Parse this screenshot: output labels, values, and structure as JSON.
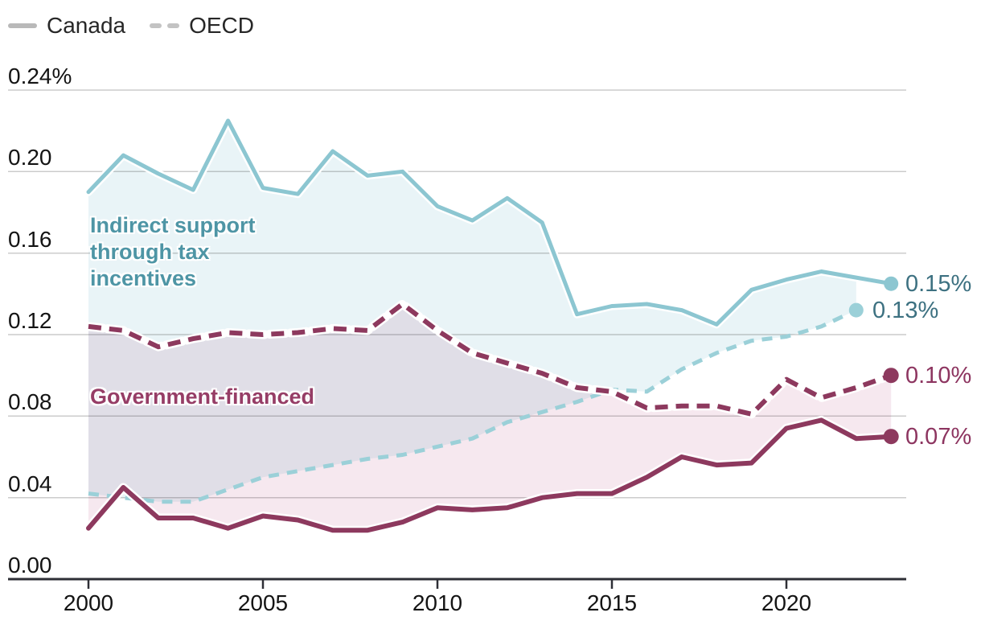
{
  "legend": {
    "items": [
      {
        "label": "Canada",
        "style": "solid",
        "swatch_color": "#b9b9b9"
      },
      {
        "label": "OECD",
        "style": "dashed",
        "swatch_color": "#c3c3c3"
      }
    ]
  },
  "annotations": {
    "indirect": {
      "text": "Indirect support\nthrough tax\nincentives",
      "color": "#4e95a5"
    },
    "direct": {
      "text": "Government-financed",
      "color": "#963d66"
    }
  },
  "end_labels": [
    {
      "text": "0.15%",
      "color": "#3d7181",
      "series": "canada_tax"
    },
    {
      "text": "0.13%",
      "color": "#3d7181",
      "series": "oecd_tax"
    },
    {
      "text": "0.10%",
      "color": "#8d3560",
      "series": "oecd_gov"
    },
    {
      "text": "0.07%",
      "color": "#8d3560",
      "series": "canada_gov"
    }
  ],
  "chart_data": {
    "type": "line",
    "title": "",
    "xlabel": "",
    "ylabel": "",
    "ylim": [
      0,
      0.24
    ],
    "grid": "horizontal",
    "gridline_color": "#cccccc",
    "axis_color": "#2e2f36",
    "x": [
      2000,
      2001,
      2002,
      2003,
      2004,
      2005,
      2006,
      2007,
      2008,
      2009,
      2010,
      2011,
      2012,
      2013,
      2014,
      2015,
      2016,
      2017,
      2018,
      2019,
      2020,
      2021,
      2022,
      2023
    ],
    "x_ticks": [
      {
        "v": 2000,
        "label": "2000"
      },
      {
        "v": 2005,
        "label": "2005"
      },
      {
        "v": 2010,
        "label": "2010"
      },
      {
        "v": 2015,
        "label": "2015"
      },
      {
        "v": 2020,
        "label": "2020"
      }
    ],
    "y_ticks": [
      {
        "v": 0.24,
        "label": "0.24%"
      },
      {
        "v": 0.2,
        "label": "0.20"
      },
      {
        "v": 0.16,
        "label": "0.16"
      },
      {
        "v": 0.12,
        "label": "0.12"
      },
      {
        "v": 0.08,
        "label": "0.08"
      },
      {
        "v": 0.04,
        "label": "0.04"
      },
      {
        "v": 0.0,
        "label": "0.00"
      }
    ],
    "series": [
      {
        "id": "canada_tax",
        "name": "Canada — indirect support through tax incentives",
        "country": "Canada",
        "line": "solid",
        "color": "#8cc6d1",
        "end_label": "0.15%",
        "values": [
          0.19,
          0.208,
          0.199,
          0.191,
          0.225,
          0.192,
          0.189,
          0.21,
          0.198,
          0.2,
          0.183,
          0.176,
          0.187,
          0.175,
          0.13,
          0.134,
          0.135,
          0.132,
          0.125,
          0.142,
          0.147,
          0.151,
          0.148,
          0.145
        ]
      },
      {
        "id": "oecd_tax",
        "name": "OECD — indirect support through tax incentives",
        "country": "OECD",
        "line": "dashed",
        "color": "#9bd0d8",
        "end_label": "0.13%",
        "values": [
          0.042,
          0.04,
          0.038,
          0.038,
          0.044,
          0.05,
          0.053,
          0.056,
          0.059,
          0.061,
          0.065,
          0.069,
          0.077,
          0.082,
          0.087,
          0.093,
          0.092,
          0.103,
          0.111,
          0.117,
          0.119,
          0.124,
          0.132,
          null
        ]
      },
      {
        "id": "oecd_gov",
        "name": "OECD — government-financed",
        "country": "OECD",
        "line": "dashed",
        "color": "#8d395e",
        "end_label": "0.10%",
        "values": [
          0.124,
          0.122,
          0.114,
          0.118,
          0.121,
          0.12,
          0.121,
          0.123,
          0.122,
          0.135,
          0.122,
          0.111,
          0.106,
          0.101,
          0.094,
          0.092,
          0.084,
          0.085,
          0.085,
          0.081,
          0.098,
          0.089,
          0.094,
          0.1
        ]
      },
      {
        "id": "canada_gov",
        "name": "Canada — government-financed",
        "country": "Canada",
        "line": "solid",
        "color": "#8d395e",
        "end_label": "0.07%",
        "values": [
          0.025,
          0.045,
          0.03,
          0.03,
          0.025,
          0.031,
          0.029,
          0.024,
          0.024,
          0.028,
          0.035,
          0.034,
          0.035,
          0.04,
          0.042,
          0.042,
          0.05,
          0.06,
          0.056,
          0.057,
          0.074,
          0.078,
          0.069,
          0.07
        ]
      }
    ],
    "bands": [
      {
        "top": "canada_tax",
        "bottom": "oecd_tax",
        "color": "#e9f4f7"
      },
      {
        "top": "oecd_gov",
        "bottom": "canada_gov",
        "color": "#f6e8ef"
      }
    ]
  }
}
